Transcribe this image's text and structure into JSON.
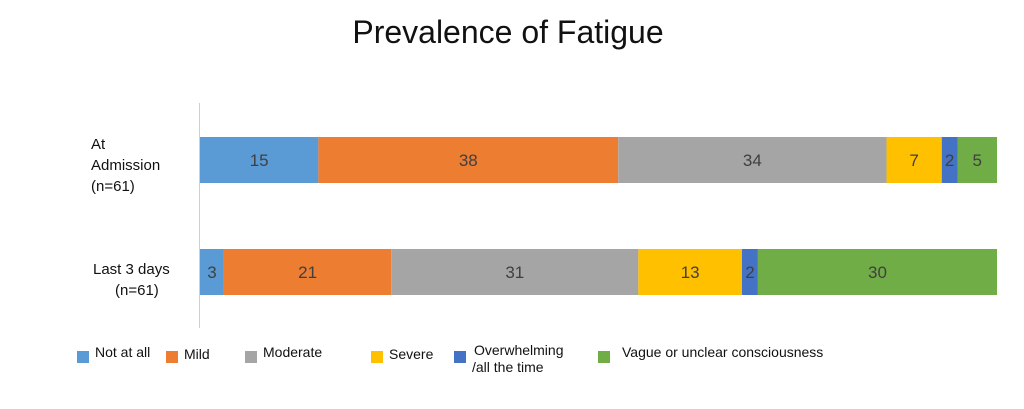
{
  "chart_data": {
    "type": "bar",
    "orientation": "horizontal",
    "stacked": true,
    "title": "Prevalence of Fatigue",
    "categories": [
      "At Admission (n=61)",
      "Last 3 days (n=61)"
    ],
    "category_lines": [
      [
        "At",
        "Admission",
        "(n=61)"
      ],
      [
        "Last 3 days",
        "(n=61)"
      ]
    ],
    "series": [
      {
        "name": "Not at all",
        "legend_lines": [
          "Not at all"
        ],
        "color": "#5B9BD5",
        "values": [
          15,
          3
        ]
      },
      {
        "name": "Mild",
        "legend_lines": [
          "Mild"
        ],
        "color": "#ED7D31",
        "values": [
          38,
          21
        ]
      },
      {
        "name": "Moderate",
        "legend_lines": [
          "Moderate"
        ],
        "color": "#A5A5A5",
        "values": [
          34,
          31
        ]
      },
      {
        "name": "Severe",
        "legend_lines": [
          "Severe"
        ],
        "color": "#FFC000",
        "values": [
          7,
          13
        ]
      },
      {
        "name": "Overwhelming /all the time",
        "legend_lines": [
          "Overwhelming",
          "/all the time"
        ],
        "color": "#4472C4",
        "values": [
          2,
          2
        ]
      },
      {
        "name": "Vague or unclear consciousness",
        "legend_lines": [
          "Vague or unclear consciousness"
        ],
        "color": "#70AD47",
        "values": [
          5,
          30
        ]
      }
    ],
    "legend_position": "bottom",
    "grid": false
  }
}
